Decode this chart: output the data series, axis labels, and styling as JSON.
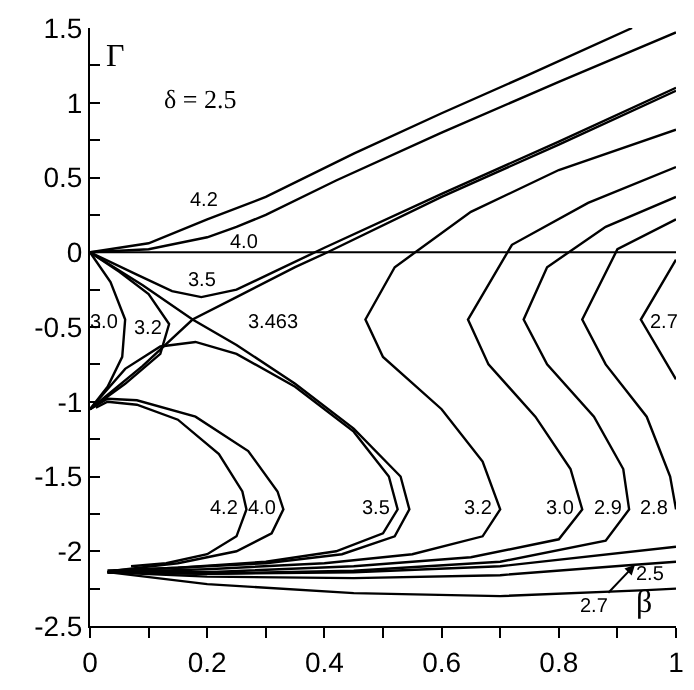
{
  "chart_data": {
    "type": "line",
    "xlabel": "β",
    "ylabel": "Γ",
    "xlim": [
      0,
      1
    ],
    "ylim": [
      -2.5,
      1.5
    ],
    "xticks": [
      0,
      {
        "value": 0.1,
        "label": null
      },
      0.2,
      {
        "value": 0.3,
        "label": null
      },
      0.4,
      {
        "value": 0.5,
        "label": null
      },
      0.6,
      {
        "value": 0.7,
        "label": null
      },
      0.8,
      {
        "value": 0.9,
        "label": null
      },
      1
    ],
    "yticks": [
      -2.5,
      {
        "value": -2.25,
        "label": null
      },
      -2,
      {
        "value": -1.75,
        "label": null
      },
      -1.5,
      {
        "value": -1.25,
        "label": null
      },
      -1,
      {
        "value": -0.75,
        "label": null
      },
      -0.5,
      {
        "value": -0.25,
        "label": null
      },
      0,
      {
        "value": 0.25,
        "label": null
      },
      0.5,
      {
        "value": 0.75,
        "label": null
      },
      1,
      {
        "value": 1.25,
        "label": null
      },
      1.5
    ],
    "grid": false,
    "marker": "none",
    "line_style": "solid",
    "ref_lines": [
      {
        "axis": "y",
        "value": 0,
        "color": "#000000"
      }
    ],
    "series": [
      {
        "color": "#000000",
        "x": [
          0,
          0.1,
          0.2,
          0.3,
          0.45,
          0.6,
          0.75,
          0.925
        ],
        "values": [
          0,
          0.06,
          0.22,
          0.37,
          0.66,
          0.93,
          1.19,
          1.5
        ]
      },
      {
        "color": "#000000",
        "x": [
          0.01,
          0.03,
          0.08,
          0.15,
          0.22,
          0.26,
          0.267,
          0.25,
          0.2,
          0.13,
          0.07
        ],
        "values": [
          -1.04,
          -1.0,
          -1.02,
          -1.12,
          -1.35,
          -1.6,
          -1.72,
          -1.9,
          -2.02,
          -2.08,
          -2.1
        ]
      },
      {
        "color": "#000000",
        "x": [
          0,
          0.1,
          0.2,
          0.25,
          0.3,
          0.42,
          0.6,
          0.8,
          1
        ],
        "values": [
          0,
          0.02,
          0.1,
          0.17,
          0.25,
          0.48,
          0.8,
          1.14,
          1.47
        ]
      },
      {
        "color": "#000000",
        "x": [
          0,
          0.03,
          0.08,
          0.18,
          0.27,
          0.32,
          0.33,
          0.31,
          0.25,
          0.15,
          0.04
        ],
        "values": [
          -1.05,
          -0.98,
          -0.99,
          -1.1,
          -1.33,
          -1.6,
          -1.72,
          -1.88,
          -2.0,
          -2.08,
          -2.13
        ]
      },
      {
        "color": "#000000",
        "x": [
          0,
          0.08,
          0.14,
          0.19,
          0.25,
          0.32,
          0.4,
          0.6,
          0.8,
          1
        ],
        "values": [
          0,
          -0.15,
          -0.26,
          -0.3,
          -0.25,
          -0.12,
          0.03,
          0.39,
          0.74,
          1.1
        ]
      },
      {
        "color": "#000000",
        "x": [
          0,
          0.06,
          0.12,
          0.18,
          0.25,
          0.35,
          0.45,
          0.51,
          0.525,
          0.5,
          0.42,
          0.3,
          0.15,
          0.03
        ],
        "values": [
          -1.05,
          -0.78,
          -0.63,
          -0.6,
          -0.68,
          -0.9,
          -1.2,
          -1.5,
          -1.72,
          -1.88,
          -2.0,
          -2.07,
          -2.11,
          -2.13
        ]
      },
      {
        "color": "#000000",
        "x": [
          0,
          0.09,
          0.175,
          0.25,
          0.35,
          0.45,
          0.53,
          0.545,
          0.52,
          0.43,
          0.3,
          0.15,
          0.03
        ],
        "values": [
          0,
          -0.22,
          -0.45,
          -0.62,
          -0.88,
          -1.18,
          -1.5,
          -1.72,
          -1.9,
          -2.02,
          -2.08,
          -2.11,
          -2.13
        ]
      },
      {
        "color": "#000000",
        "x": [
          0,
          0.09,
          0.175,
          0.25,
          0.35,
          0.4,
          0.6,
          0.8,
          1
        ],
        "values": [
          -1.05,
          -0.76,
          -0.45,
          -0.3,
          -0.1,
          -0.01,
          0.37,
          0.72,
          1.08
        ]
      },
      {
        "color": "#000000",
        "x": [
          0,
          0.05,
          0.1,
          0.135,
          0.12,
          0.06,
          0
        ],
        "values": [
          0,
          -0.13,
          -0.28,
          -0.48,
          -0.68,
          -0.88,
          -1.05
        ]
      },
      {
        "color": "#000000",
        "x": [
          1,
          0.8,
          0.65,
          0.52,
          0.47,
          0.5,
          0.6,
          0.67,
          0.7,
          0.67,
          0.55,
          0.4,
          0.2,
          0.03
        ],
        "values": [
          0.82,
          0.55,
          0.27,
          -0.1,
          -0.45,
          -0.7,
          -1.05,
          -1.4,
          -1.72,
          -1.9,
          -2.02,
          -2.08,
          -2.12,
          -2.14
        ]
      },
      {
        "color": "#000000",
        "x": [
          0,
          0.035,
          0.06,
          0.055,
          0.03,
          0
        ],
        "values": [
          0,
          -0.2,
          -0.45,
          -0.7,
          -0.9,
          -1.05
        ]
      },
      {
        "color": "#000000",
        "x": [
          1,
          0.85,
          0.72,
          0.645,
          0.68,
          0.76,
          0.82,
          0.84,
          0.8,
          0.65,
          0.45,
          0.2,
          0.03
        ],
        "values": [
          0.57,
          0.33,
          0.05,
          -0.45,
          -0.75,
          -1.1,
          -1.45,
          -1.72,
          -1.92,
          -2.04,
          -2.1,
          -2.14,
          -2.14
        ]
      },
      {
        "color": "#000000",
        "x": [
          1,
          0.88,
          0.78,
          0.74,
          0.78,
          0.86,
          0.91,
          0.92,
          0.88,
          0.7,
          0.45,
          0.2,
          0.03
        ],
        "values": [
          0.37,
          0.17,
          -0.1,
          -0.45,
          -0.75,
          -1.1,
          -1.45,
          -1.72,
          -1.93,
          -2.07,
          -2.13,
          -2.15,
          -2.14
        ]
      },
      {
        "color": "#000000",
        "x": [
          1,
          0.9,
          0.84,
          0.88,
          0.95,
          0.99,
          1
        ],
        "values": [
          0.22,
          0.02,
          -0.45,
          -0.75,
          -1.1,
          -1.5,
          -1.72
        ]
      },
      {
        "color": "#000000",
        "x": [
          1,
          0.7,
          0.45,
          0.2,
          0.03
        ],
        "values": [
          -1.97,
          -2.1,
          -2.14,
          -2.15,
          -2.14
        ]
      },
      {
        "color": "#000000",
        "x": [
          1,
          0.94,
          1
        ],
        "values": [
          -0.05,
          -0.45,
          -0.85
        ]
      },
      {
        "color": "#000000",
        "x": [
          1,
          0.93,
          0.7,
          0.45,
          0.2,
          0.03
        ],
        "values": [
          -2.07,
          -2.09,
          -2.16,
          -2.18,
          -2.17,
          -2.14
        ]
      },
      {
        "color": "#000000",
        "x": [
          1,
          0.95,
          0.7,
          0.45,
          0.2,
          0.03
        ],
        "values": [
          -2.25,
          -2.26,
          -2.3,
          -2.28,
          -2.22,
          -2.14
        ]
      }
    ],
    "annotations": [
      "δ = 2.5",
      {
        "text": "4.2",
        "x": 0.2,
        "y": 0.22
      },
      {
        "text": "4.0",
        "x": 0.25,
        "y": 0.17
      },
      {
        "text": "3.5",
        "x": 0.19,
        "y": -0.3
      },
      {
        "text": "3.0",
        "x": 0.06,
        "y": -0.45
      },
      {
        "text": "3.2",
        "x": 0.135,
        "y": -0.48
      },
      {
        "text": "3.463",
        "x": 0.175,
        "y": -0.45
      },
      {
        "text": "2.7",
        "x": 0.94,
        "y": -0.45
      },
      {
        "text": "4.2",
        "x": 0.267,
        "y": -1.72
      },
      {
        "text": "4.0",
        "x": 0.33,
        "y": -1.72
      },
      {
        "text": "3.5",
        "x": 0.525,
        "y": -1.72
      },
      {
        "text": "3.2",
        "x": 0.7,
        "y": -1.72
      },
      {
        "text": "3.0",
        "x": 0.84,
        "y": -1.72
      },
      {
        "text": "2.9",
        "x": 0.92,
        "y": -1.72
      },
      {
        "text": "2.8",
        "x": 1,
        "y": -1.72
      },
      {
        "text": "2.7",
        "x": 0.93,
        "y": -2.09
      },
      {
        "text": "2.5",
        "x": 0.95,
        "y": -2.26
      }
    ]
  }
}
